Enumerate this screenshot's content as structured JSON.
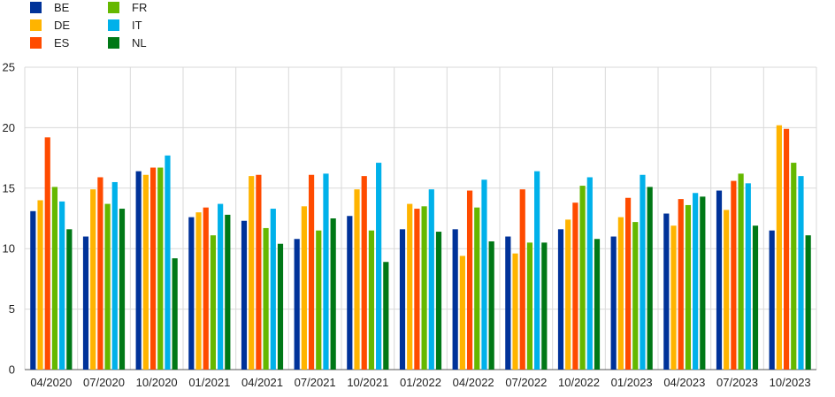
{
  "chart_data": {
    "type": "bar",
    "categories": [
      "04/2020",
      "07/2020",
      "10/2020",
      "01/2021",
      "04/2021",
      "07/2021",
      "10/2021",
      "01/2022",
      "04/2022",
      "07/2022",
      "10/2022",
      "01/2023",
      "04/2023",
      "07/2023",
      "10/2023"
    ],
    "ylim": [
      0,
      25
    ],
    "yticks": [
      0,
      5,
      10,
      15,
      20,
      25
    ],
    "grid": true,
    "legend_position": "top-left",
    "series": [
      {
        "name": "BE",
        "color": "#003299",
        "values": [
          13.1,
          11.0,
          16.4,
          12.6,
          12.3,
          10.8,
          12.7,
          11.6,
          11.6,
          11.0,
          11.6,
          11.0,
          12.9,
          14.8,
          11.5
        ]
      },
      {
        "name": "DE",
        "color": "#FFB400",
        "values": [
          14.0,
          14.9,
          16.1,
          13.0,
          16.0,
          13.5,
          14.9,
          13.7,
          9.4,
          9.6,
          12.4,
          12.6,
          11.9,
          13.2,
          20.2
        ]
      },
      {
        "name": "ES",
        "color": "#FF4B00",
        "values": [
          19.2,
          15.9,
          16.7,
          13.4,
          16.1,
          16.1,
          16.0,
          13.3,
          14.8,
          14.9,
          13.8,
          14.2,
          14.1,
          15.6,
          19.9
        ]
      },
      {
        "name": "FR",
        "color": "#65B800",
        "values": [
          15.1,
          13.7,
          16.7,
          11.1,
          11.7,
          11.5,
          11.5,
          13.5,
          13.4,
          10.5,
          15.2,
          12.2,
          13.6,
          16.2,
          17.1
        ]
      },
      {
        "name": "IT",
        "color": "#00B1EA",
        "values": [
          13.9,
          15.5,
          17.7,
          13.7,
          13.3,
          16.2,
          17.1,
          14.9,
          15.7,
          16.4,
          15.9,
          16.1,
          14.6,
          15.4,
          16.0
        ]
      },
      {
        "name": "NL",
        "color": "#007816",
        "values": [
          11.6,
          13.3,
          9.2,
          12.8,
          10.4,
          12.5,
          8.9,
          11.4,
          10.6,
          10.5,
          10.8,
          15.1,
          14.3,
          11.9,
          11.1
        ]
      }
    ]
  }
}
